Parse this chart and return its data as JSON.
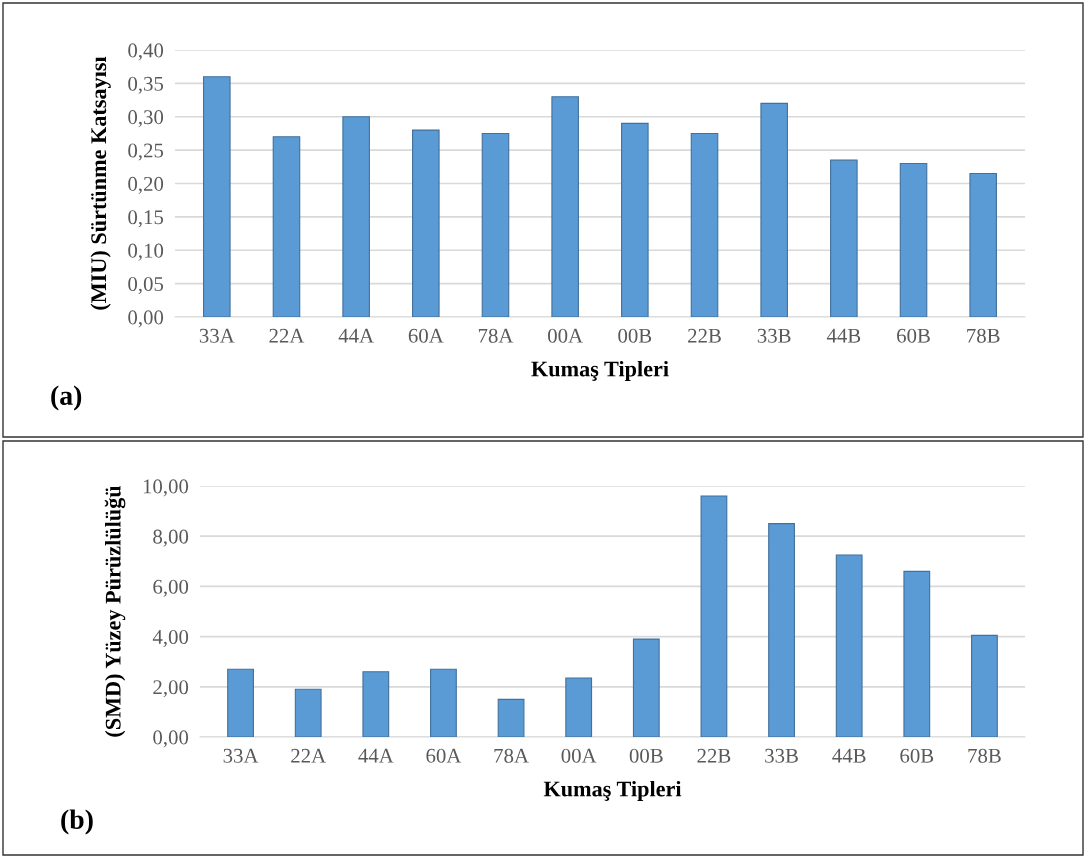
{
  "chart_data": [
    {
      "type": "bar",
      "categories": [
        "33A",
        "22A",
        "44A",
        "60A",
        "78A",
        "00A",
        "00B",
        "22B",
        "33B",
        "44B",
        "60B",
        "78B"
      ],
      "xlabel": "Kumaş Tipleri",
      "ylabel": "(MIU) Sürtünme Katsayısı",
      "annotations": [
        "(a)"
      ],
      "color": "#5b9bd5",
      "values": [
        0.36,
        0.27,
        0.3,
        0.28,
        0.275,
        0.33,
        0.29,
        0.275,
        0.32,
        0.235,
        0.23,
        0.215
      ],
      "ylim": [
        0,
        0.4
      ],
      "yticks": [
        {
          "value": 0,
          "label": "0,00"
        },
        {
          "value": 0.05,
          "label": "0,05"
        },
        {
          "value": 0.1,
          "label": "0,10"
        },
        {
          "value": 0.15,
          "label": "0,15"
        },
        {
          "value": 0.2,
          "label": "0,20"
        },
        {
          "value": 0.25,
          "label": "0,25"
        },
        {
          "value": 0.3,
          "label": "0,30"
        },
        {
          "value": 0.35,
          "label": "0,35"
        },
        {
          "value": 0.4,
          "label": "0,40"
        }
      ],
      "grid": "y"
    },
    {
      "type": "bar",
      "categories": [
        "33A",
        "22A",
        "44A",
        "60A",
        "78A",
        "00A",
        "00B",
        "22B",
        "33B",
        "44B",
        "60B",
        "78B"
      ],
      "xlabel": "Kumaş Tipleri",
      "ylabel": "(SMD) Yüzey Pürüzlülüğü",
      "annotations": [
        "(b)"
      ],
      "color": "#5b9bd5",
      "values": [
        2.7,
        1.9,
        2.6,
        2.7,
        1.5,
        2.35,
        3.9,
        9.6,
        8.5,
        7.25,
        6.6,
        4.05
      ],
      "ylim": [
        0,
        10
      ],
      "yticks": [
        {
          "value": 0,
          "label": "0,00"
        },
        {
          "value": 2,
          "label": "2,00"
        },
        {
          "value": 4,
          "label": "4,00"
        },
        {
          "value": 6,
          "label": "6,00"
        },
        {
          "value": 8,
          "label": "8,00"
        },
        {
          "value": 10,
          "label": "10,00"
        }
      ],
      "grid": "y"
    }
  ]
}
